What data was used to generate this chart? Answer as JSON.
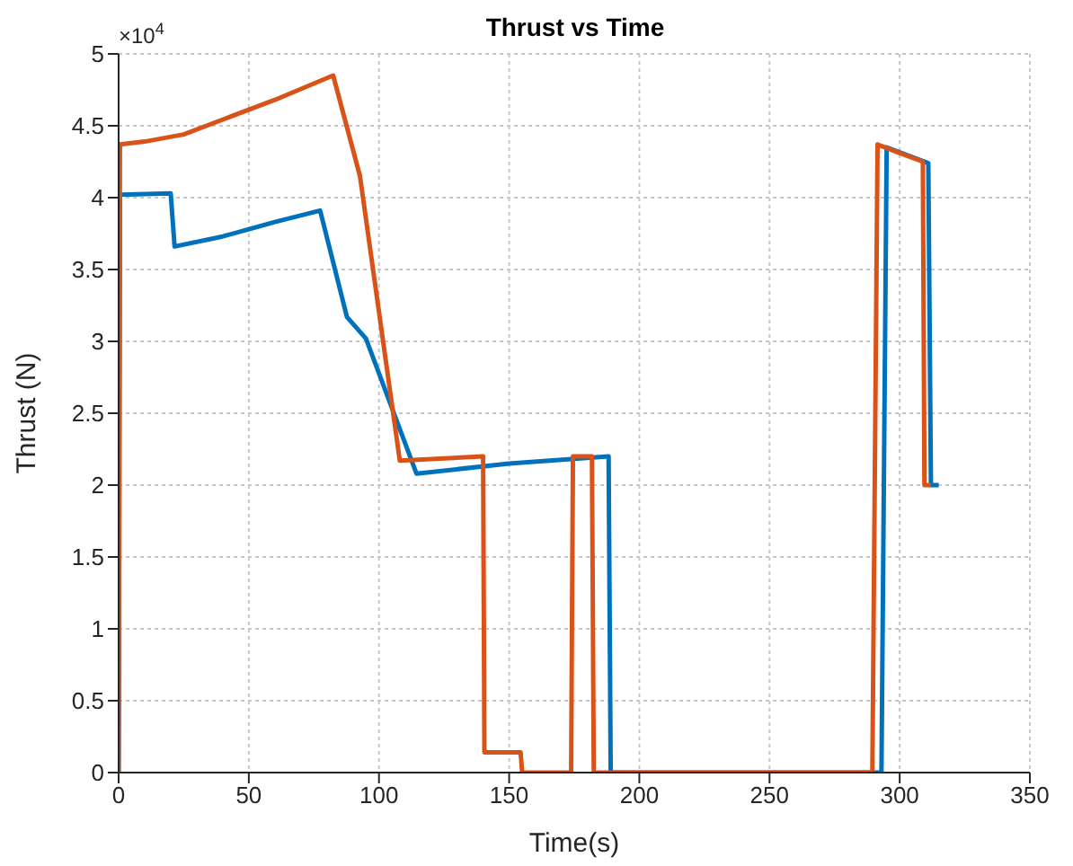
{
  "chart_data": {
    "type": "line",
    "title": "Thrust vs Time",
    "xlabel": "Time(s)",
    "ylabel": "Thrust (N)",
    "annotations": [
      "×10$^{4}$"
    ],
    "series": [
      {
        "color": "#0072bd",
        "x": [
          0,
          0.5,
          20,
          21.5,
          40,
          60,
          77.4,
          87.7,
          95,
          114.4,
          150,
          188.2,
          189,
          293,
          295,
          311,
          312,
          315
        ],
        "values": [
          0,
          4.02,
          4.03,
          3.66,
          3.73,
          3.83,
          3.91,
          3.17,
          3.02,
          2.08,
          2.15,
          2.2,
          0,
          0,
          4.35,
          4.24,
          2,
          2
        ]
      },
      {
        "color": "#d95319",
        "x": [
          0,
          0.5,
          10,
          25,
          41,
          60,
          82.4,
          92.7,
          108,
          140,
          140.5,
          154.4,
          155,
          173.8,
          174.5,
          181.8,
          182.5,
          289.5,
          291.5,
          300,
          308.9,
          309.5,
          312
        ],
        "values": [
          0,
          4.37,
          4.39,
          4.44,
          4.55,
          4.68,
          4.85,
          4.15,
          2.17,
          2.2,
          0.14,
          0.14,
          0,
          0,
          2.2,
          2.2,
          0,
          0,
          4.37,
          4.31,
          4.25,
          2,
          2
        ]
      }
    ],
    "xlim": [
      0,
      350
    ],
    "xticks": [
      0,
      50,
      100,
      150,
      200,
      250,
      300,
      350
    ],
    "ylim": [
      0,
      5
    ],
    "yticks": [
      0,
      0.5,
      1,
      1.5,
      2,
      2.5,
      3,
      3.5,
      4,
      4.5,
      5
    ],
    "grid": true,
    "legend": false,
    "marker": "none",
    "line_style": "solid"
  }
}
